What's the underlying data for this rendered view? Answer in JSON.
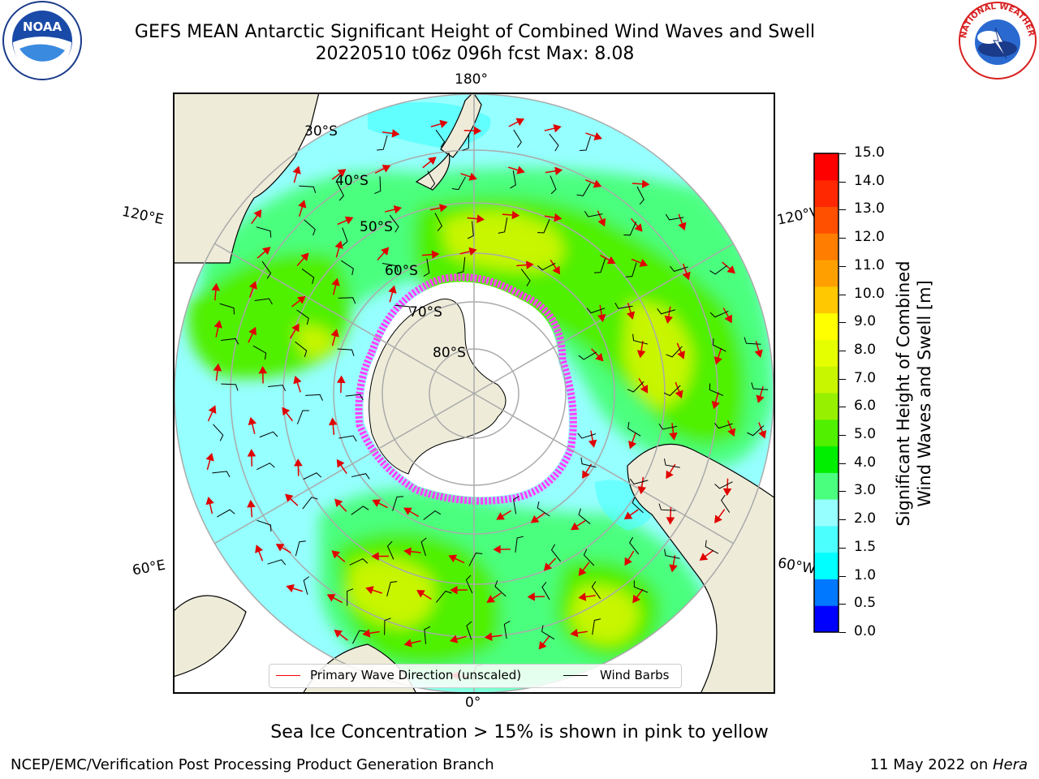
{
  "title": {
    "line1": "GEFS MEAN Antarctic Significant Height of Combined Wind Waves and Swell",
    "line2": "20220510 t06z 096h fcst   Max: 8.08"
  },
  "logos": {
    "noaa": "NOAA",
    "nws": "NATIONAL WEATHER SERVICE"
  },
  "map": {
    "longitude_labels": {
      "top": "180°",
      "bottom": "0°",
      "upper_left": "120°E",
      "upper_right": "120°W",
      "lower_left": "60°E",
      "lower_right": "60°W"
    },
    "latitude_labels": [
      "30°S",
      "40°S",
      "50°S",
      "60°S",
      "70°S",
      "80°S"
    ]
  },
  "legend": {
    "wave_direction": "Primary Wave Direction (unscaled)",
    "wind_barbs": "Wind Barbs",
    "wave_color": "#ff0000",
    "barb_color": "#000000"
  },
  "colorbar": {
    "title_line1": "Significant Height of Combined",
    "title_line2": "Wind Waves and Swell [m]",
    "ticks": [
      "15.0",
      "14.0",
      "13.0",
      "12.0",
      "11.0",
      "10.0",
      "9.0",
      "8.0",
      "7.0",
      "6.0",
      "5.0",
      "4.0",
      "3.0",
      "2.0",
      "1.5",
      "1.0",
      "0.5",
      "0.0"
    ],
    "colors_bottom_to_top": [
      "#0000ff",
      "#0078ff",
      "#00ffff",
      "#4bffff",
      "#96ffff",
      "#4bff7e",
      "#00ee00",
      "#50f000",
      "#96f000",
      "#c8f500",
      "#e6ff00",
      "#ffff00",
      "#ffc800",
      "#ffa000",
      "#ff7d00",
      "#ff5000",
      "#ff2800",
      "#ff0000"
    ]
  },
  "ice_note": "Sea Ice Concentration > 15% is shown in pink to yellow",
  "footer": {
    "left": "NCEP/EMC/Verification Post Processing Product Generation Branch",
    "right_prefix": "11 May 2022 on ",
    "right_host": "Hera"
  }
}
